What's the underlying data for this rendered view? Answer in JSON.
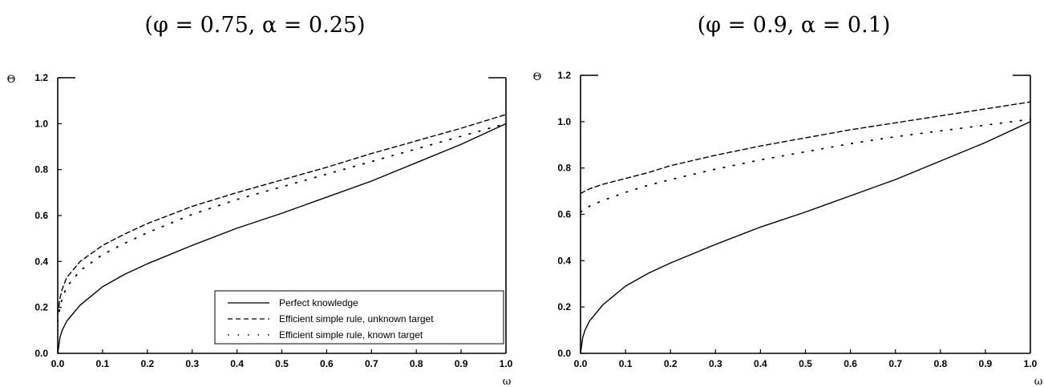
{
  "chart_data": [
    {
      "type": "line",
      "title": "(φ = 0.75, α = 0.25)",
      "xlabel": "ω",
      "ylabel": "Θ",
      "xlim": [
        0.0,
        1.0
      ],
      "ylim": [
        0.0,
        1.2
      ],
      "xticks": [
        "0.0",
        "0.1",
        "0.2",
        "0.3",
        "0.4",
        "0.5",
        "0.6",
        "0.7",
        "0.8",
        "0.9",
        "1.0"
      ],
      "yticks": [
        "0.0",
        "0.2",
        "0.4",
        "0.6",
        "0.8",
        "1.0",
        "1.2"
      ],
      "grid": false,
      "legend_position": "bottom-right",
      "x": [
        0.0,
        0.005,
        0.01,
        0.02,
        0.05,
        0.1,
        0.15,
        0.2,
        0.3,
        0.4,
        0.5,
        0.6,
        0.7,
        0.8,
        0.9,
        1.0
      ],
      "series": [
        {
          "name": "Perfect knowledge",
          "style": "solid",
          "values": [
            0.0,
            0.07,
            0.1,
            0.14,
            0.21,
            0.29,
            0.345,
            0.39,
            0.47,
            0.545,
            0.61,
            0.68,
            0.75,
            0.83,
            0.91,
            1.0
          ]
        },
        {
          "name": "Efficient simple rule, unknown target",
          "style": "dashed",
          "values": [
            0.17,
            0.24,
            0.28,
            0.33,
            0.4,
            0.47,
            0.52,
            0.565,
            0.64,
            0.7,
            0.755,
            0.81,
            0.87,
            0.925,
            0.98,
            1.04
          ]
        },
        {
          "name": "Efficient simple rule, known target",
          "style": "dotted",
          "values": [
            0.14,
            0.2,
            0.24,
            0.29,
            0.36,
            0.43,
            0.48,
            0.525,
            0.605,
            0.67,
            0.725,
            0.78,
            0.835,
            0.89,
            0.945,
            1.0
          ]
        }
      ]
    },
    {
      "type": "line",
      "title": "(φ = 0.9, α = 0.1)",
      "xlabel": "ω",
      "ylabel": "Θ",
      "xlim": [
        0.0,
        1.0
      ],
      "ylim": [
        0.0,
        1.2
      ],
      "xticks": [
        "0.0",
        "0.1",
        "0.2",
        "0.3",
        "0.4",
        "0.5",
        "0.6",
        "0.7",
        "0.8",
        "0.9",
        "1.0"
      ],
      "yticks": [
        "0.0",
        "0.2",
        "0.4",
        "0.6",
        "0.8",
        "1.0",
        "1.2"
      ],
      "grid": false,
      "x": [
        0.0,
        0.005,
        0.01,
        0.02,
        0.05,
        0.1,
        0.15,
        0.2,
        0.3,
        0.4,
        0.5,
        0.6,
        0.7,
        0.8,
        0.9,
        1.0
      ],
      "series": [
        {
          "name": "Perfect knowledge",
          "style": "solid",
          "values": [
            0.0,
            0.07,
            0.1,
            0.14,
            0.21,
            0.29,
            0.345,
            0.39,
            0.47,
            0.545,
            0.61,
            0.68,
            0.75,
            0.83,
            0.91,
            1.0
          ]
        },
        {
          "name": "Efficient simple rule, unknown target",
          "style": "dashed",
          "values": [
            0.69,
            0.695,
            0.7,
            0.71,
            0.73,
            0.755,
            0.78,
            0.81,
            0.855,
            0.895,
            0.93,
            0.965,
            0.995,
            1.025,
            1.055,
            1.085
          ]
        },
        {
          "name": "Efficient simple rule, known target",
          "style": "dotted",
          "values": [
            0.61,
            0.615,
            0.62,
            0.635,
            0.66,
            0.695,
            0.725,
            0.75,
            0.795,
            0.835,
            0.87,
            0.905,
            0.935,
            0.96,
            0.985,
            1.01
          ]
        }
      ]
    }
  ]
}
